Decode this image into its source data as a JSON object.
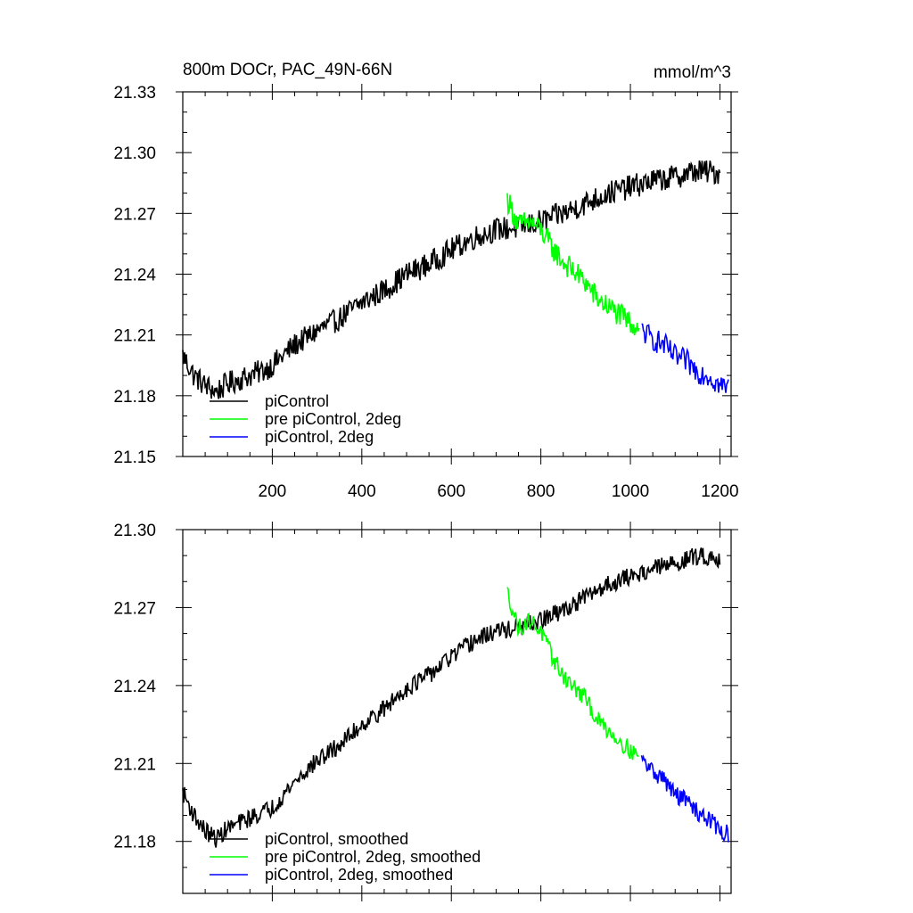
{
  "chart_data": [
    {
      "type": "line",
      "title": "800m DOCr, PAC_49N-66N",
      "units": "mmol/m^3",
      "xlim": [
        0,
        1225
      ],
      "ylim": [
        21.15,
        21.33
      ],
      "x_ticks": [
        200,
        400,
        600,
        800,
        1000,
        1200
      ],
      "x_tick_labels": [
        "200",
        "400",
        "600",
        "800",
        "1000",
        "1200"
      ],
      "y_ticks": [
        21.15,
        21.18,
        21.21,
        21.24,
        21.27,
        21.3,
        21.33
      ],
      "y_tick_labels": [
        "21.15",
        "21.18",
        "21.21",
        "21.24",
        "21.27",
        "21.30",
        "21.33"
      ],
      "legend": {
        "position": "bottom-left"
      },
      "series": [
        {
          "name": "piControl",
          "color": "#000000",
          "x": [
            0,
            25,
            50,
            75,
            100,
            125,
            150,
            175,
            200,
            250,
            300,
            350,
            400,
            450,
            500,
            550,
            600,
            650,
            700,
            750,
            800,
            850,
            900,
            950,
            1000,
            1050,
            1100,
            1150,
            1200
          ],
          "y": [
            21.2,
            21.19,
            21.185,
            21.182,
            21.186,
            21.188,
            21.19,
            21.192,
            21.195,
            21.205,
            21.212,
            21.218,
            21.226,
            21.232,
            21.24,
            21.245,
            21.252,
            21.258,
            21.262,
            21.263,
            21.266,
            21.27,
            21.275,
            21.28,
            21.283,
            21.286,
            21.288,
            21.291,
            21.29
          ]
        },
        {
          "name": "pre piControl, 2deg",
          "color": "#00ff00",
          "x": [
            725,
            750,
            775,
            800,
            825,
            850,
            875,
            900,
            925,
            950,
            975,
            1000,
            1020
          ],
          "y": [
            21.277,
            21.264,
            21.266,
            21.262,
            21.253,
            21.246,
            21.241,
            21.236,
            21.228,
            21.224,
            21.22,
            21.216,
            21.214
          ]
        },
        {
          "name": "piControl, 2deg",
          "color": "#0000ff",
          "x": [
            1025,
            1050,
            1075,
            1100,
            1125,
            1150,
            1175,
            1200,
            1220
          ],
          "y": [
            21.212,
            21.208,
            21.205,
            21.199,
            21.197,
            21.192,
            21.19,
            21.185,
            21.184
          ]
        }
      ]
    },
    {
      "type": "line",
      "xlim": [
        0,
        1225
      ],
      "ylim": [
        21.16,
        21.3
      ],
      "x_ticks": [
        200,
        400,
        600,
        800,
        1000,
        1200
      ],
      "y_ticks": [
        21.18,
        21.21,
        21.24,
        21.27,
        21.3
      ],
      "y_tick_labels": [
        "21.18",
        "21.21",
        "21.24",
        "21.27",
        "21.30"
      ],
      "legend": {
        "position": "bottom-left"
      },
      "series": [
        {
          "name": "piControl, smoothed",
          "color": "#000000",
          "x": [
            0,
            25,
            50,
            75,
            100,
            125,
            150,
            175,
            200,
            250,
            300,
            350,
            400,
            450,
            500,
            550,
            600,
            650,
            700,
            750,
            800,
            850,
            900,
            950,
            1000,
            1050,
            1100,
            1150,
            1200
          ],
          "y": [
            21.199,
            21.19,
            21.184,
            21.181,
            21.185,
            21.187,
            21.189,
            21.191,
            21.193,
            21.203,
            21.211,
            21.217,
            21.225,
            21.231,
            21.239,
            21.244,
            21.251,
            21.257,
            21.261,
            21.262,
            21.265,
            21.269,
            21.274,
            21.279,
            21.282,
            21.285,
            21.287,
            21.29,
            21.289
          ]
        },
        {
          "name": "pre piControl, 2deg, smoothed",
          "color": "#00ff00",
          "x": [
            725,
            750,
            775,
            800,
            825,
            850,
            875,
            900,
            925,
            950,
            975,
            1000,
            1020
          ],
          "y": [
            21.276,
            21.262,
            21.265,
            21.261,
            21.251,
            21.244,
            21.239,
            21.235,
            21.227,
            21.223,
            21.219,
            21.215,
            21.213
          ]
        },
        {
          "name": "piControl, 2deg, smoothed",
          "color": "#0000ff",
          "x": [
            1025,
            1050,
            1075,
            1100,
            1125,
            1150,
            1175,
            1200,
            1220
          ],
          "y": [
            21.211,
            21.207,
            21.204,
            21.198,
            21.196,
            21.191,
            21.189,
            21.184,
            21.183
          ]
        }
      ]
    }
  ]
}
